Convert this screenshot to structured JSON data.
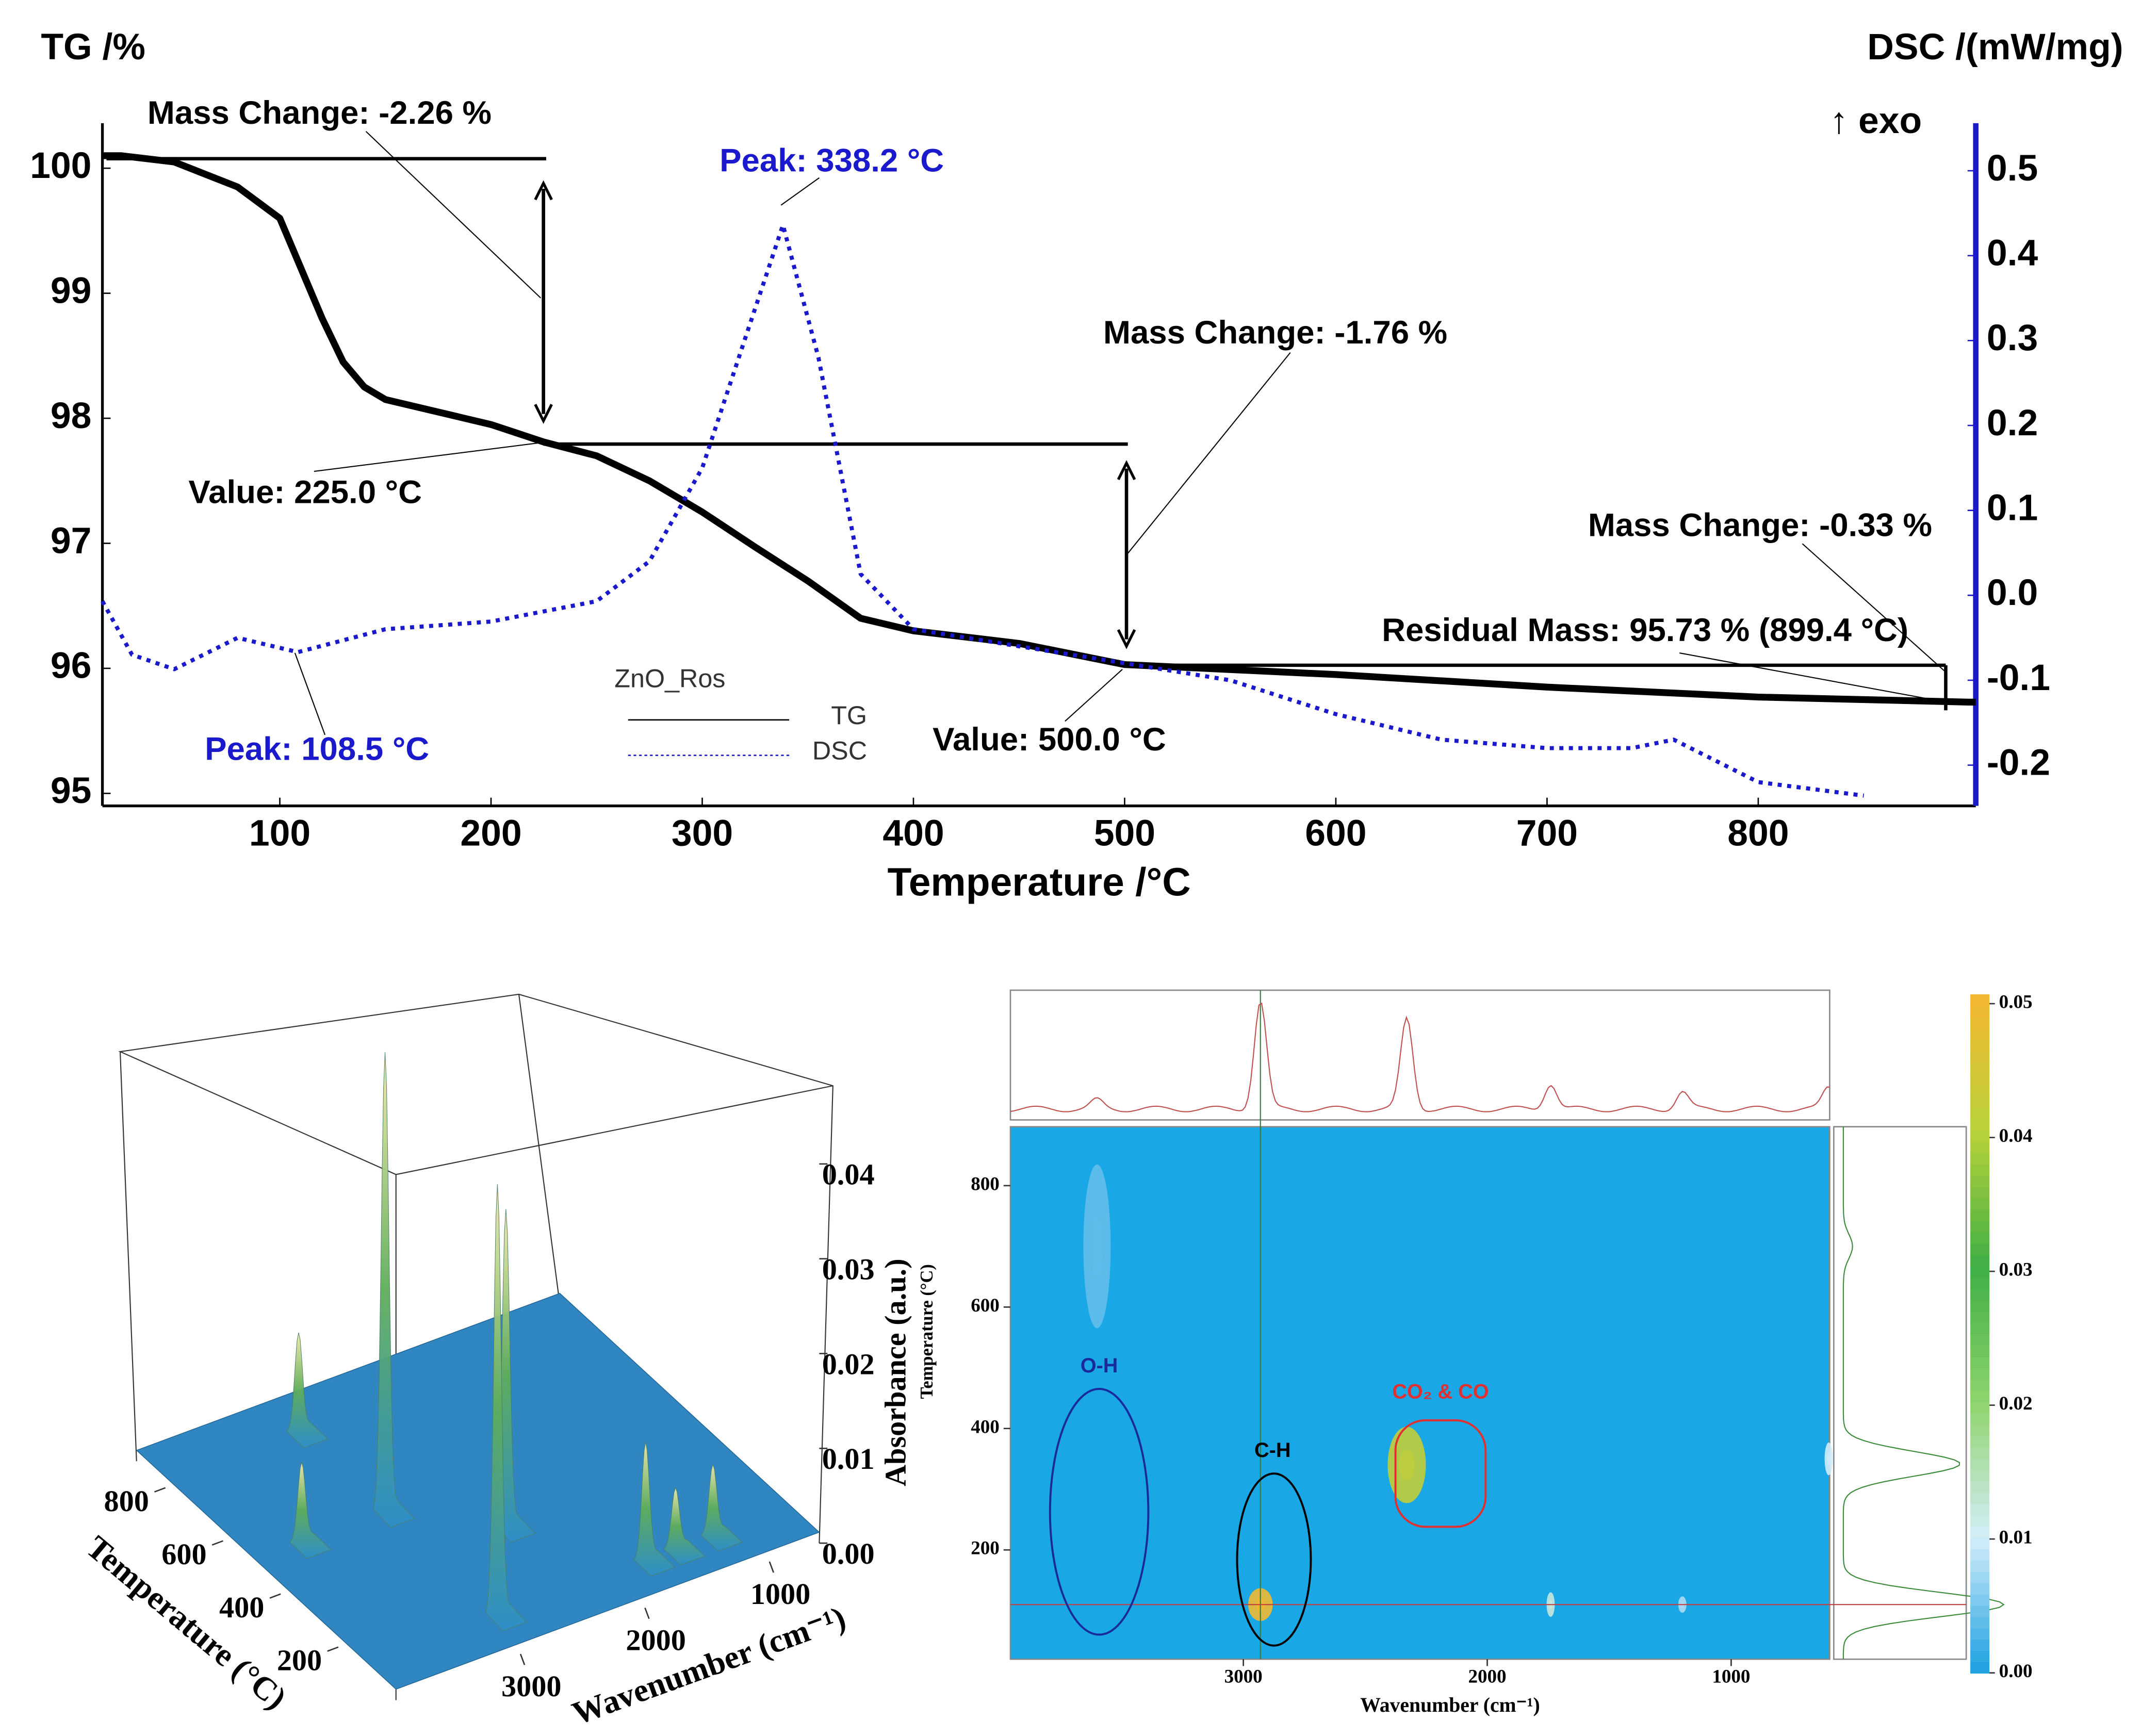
{
  "chart_data": [
    {
      "type": "line",
      "xlabel": "Temperature /°C",
      "ylabel": "TG /%",
      "y2label": "DSC /(mW/mg)",
      "y2note": "↑ exo",
      "xlim": [
        16,
        903
      ],
      "xticks": [
        100,
        200,
        300,
        400,
        500,
        600,
        700,
        800
      ],
      "ylim": [
        94.9,
        100.36
      ],
      "yticks": [
        95,
        96,
        97,
        98,
        99,
        100
      ],
      "y2lim": [
        -0.248,
        0.556
      ],
      "y2ticks": [
        -0.2,
        -0.1,
        {
          "value": 0,
          "label": "0.0"
        },
        0.1,
        0.2,
        0.3,
        0.4,
        0.5
      ],
      "legend_title": "ZnO_Ros",
      "series": [
        {
          "name": "TG",
          "color": "#000000",
          "dash": "solid",
          "x": [
            16,
            25,
            50,
            80,
            100,
            110,
            120,
            130,
            140,
            150,
            200,
            225,
            250,
            275,
            300,
            325,
            350,
            375,
            400,
            450,
            500,
            600,
            700,
            800,
            899.4,
            903
          ],
          "values": [
            100.1,
            100.1,
            100.05,
            99.85,
            99.6,
            99.2,
            98.8,
            98.45,
            98.25,
            98.15,
            97.95,
            97.81,
            97.7,
            97.5,
            97.25,
            96.97,
            96.7,
            96.4,
            96.3,
            96.2,
            96.03,
            95.95,
            95.85,
            95.77,
            95.73,
            95.73
          ]
        },
        {
          "name": "DSC",
          "color": "#1a1acc",
          "dash": "dotted",
          "axis": "y2",
          "x": [
            16,
            30,
            50,
            80,
            108.5,
            150,
            200,
            250,
            275,
            300,
            320,
            338.2,
            355,
            375,
            400,
            450,
            500,
            550,
            600,
            650,
            700,
            740,
            760,
            800,
            850
          ],
          "values": [
            -0.007,
            -0.07,
            -0.087,
            -0.05,
            -0.067,
            -0.04,
            -0.031,
            -0.007,
            0.04,
            0.15,
            0.3,
            0.436,
            0.28,
            0.025,
            -0.04,
            -0.06,
            -0.08,
            -0.1,
            -0.14,
            -0.17,
            -0.18,
            -0.18,
            -0.17,
            -0.22,
            -0.236
          ]
        }
      ],
      "annotations": [
        {
          "text": "Mass Change: -2.26 %",
          "color": "#000000"
        },
        {
          "text": "Peak: 338.2 °C",
          "color": "#1a1acc"
        },
        {
          "text": "Mass Change: -1.76 %",
          "color": "#000000"
        },
        {
          "text": "Value: 225.0 °C",
          "color": "#000000"
        },
        {
          "text": "Mass Change: -0.33 %",
          "color": "#000000"
        },
        {
          "text": "Residual Mass: 95.73 % (899.4 °C)",
          "color": "#000000"
        },
        {
          "text": "Peak: 108.5 °C",
          "color": "#1a1acc"
        },
        {
          "text": "Value: 500.0 °C",
          "color": "#000000"
        }
      ]
    },
    {
      "type": "surface3d",
      "xlabel": "Wavenumber (cm⁻¹)",
      "ylabel": "Temperature (°C)",
      "zlabel": "Absorbance (a.u.)",
      "xlim": [
        4000,
        600
      ],
      "xticks": [
        1000,
        2000,
        3000
      ],
      "ylim": [
        0,
        900
      ],
      "yticks": [
        200,
        400,
        600,
        800
      ],
      "zlim": [
        0,
        0.053
      ],
      "zticks": [
        {
          "value": 0,
          "label": "0.00"
        },
        0.01,
        0.02,
        0.03,
        0.04
      ],
      "x": [
        3600,
        2930,
        2930,
        2330,
        1740,
        1500,
        1200,
        2930
      ],
      "y": [
        500,
        110,
        500,
        340,
        110,
        110,
        110,
        800
      ],
      "values": [
        0.008,
        0.045,
        0.048,
        0.033,
        0.012,
        0.006,
        0.007,
        0.01
      ]
    },
    {
      "type": "heatmap",
      "xlabel": "Wavenumber (cm⁻¹)",
      "ylabel": "Temperature (°C)",
      "xlim": [
        3955,
        596
      ],
      "xticks": [
        1000,
        2000,
        3000
      ],
      "ylim": [
        20,
        897
      ],
      "yticks": [
        200,
        400,
        600,
        800
      ],
      "zlim": [
        0,
        0.0507
      ],
      "zticks": [
        {
          "value": 0,
          "label": "0.00"
        },
        0.01,
        0.02,
        0.03,
        0.04,
        0.05
      ],
      "colormap": [
        "#1a9fe0",
        "#d4eef9",
        "#8ed46c",
        "#3fae45",
        "#b9d23a",
        "#f5b731"
      ],
      "x": [
        2930,
        2330,
        1740,
        1200,
        600,
        3600
      ],
      "y": [
        110,
        340,
        110,
        110,
        350,
        700
      ],
      "values": [
        0.05,
        0.042,
        0.012,
        0.008,
        0.01,
        0.004
      ],
      "annotations": [
        {
          "text": "O-H",
          "color": "#1a2a9a"
        },
        {
          "text": "C-H",
          "color": "#000000"
        },
        {
          "text": "CO₂ & CO",
          "color": "#e03030"
        }
      ]
    }
  ]
}
